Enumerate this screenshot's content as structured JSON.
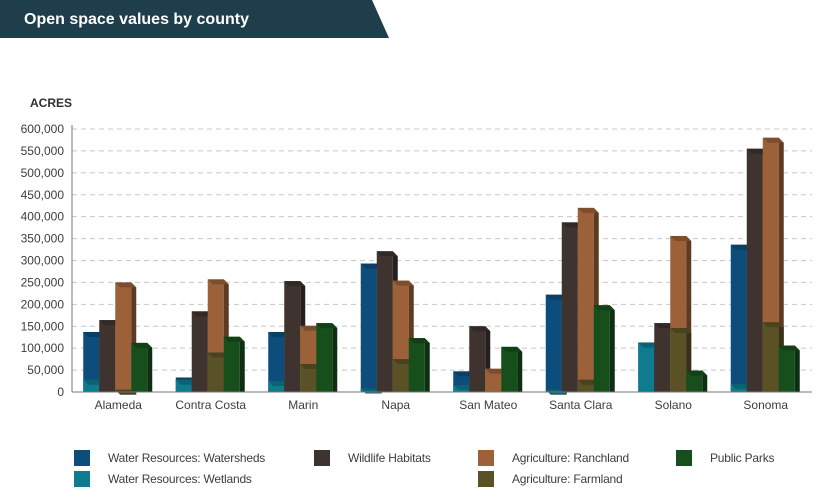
{
  "header": {
    "title": "Open space values by county"
  },
  "colors": {
    "banner": "#1e3e4c",
    "grid": "#c8c8c8",
    "axis": "#777777",
    "text": "#3d3d3d"
  },
  "chart_data": {
    "type": "bar",
    "title": "",
    "ylabel": "ACRES",
    "ylim": [
      0,
      600000
    ],
    "yticks": [
      "0",
      "50,000",
      "100,000",
      "150,000",
      "200,000",
      "250,000",
      "300,000",
      "350,000",
      "400,000",
      "450,000",
      "500,000",
      "550,000",
      "600,000"
    ],
    "categories": [
      "Alameda",
      "Contra Costa",
      "Marin",
      "Napa",
      "San Mateo",
      "Santa Clara",
      "Solano",
      "Sonoma"
    ],
    "layering": "Wetlands drawn as the lower portion of the Watersheds bar; Farmland drawn as the lower portion of the Ranchland bar",
    "series": [
      {
        "name": "Water Resources: Watersheds",
        "color": "#0c4d7c",
        "values": [
          137000,
          33000,
          137000,
          293000,
          47000,
          222000,
          113000,
          336000
        ]
      },
      {
        "name": "Water Resources: Wetlands",
        "color": "#0e7b8e",
        "values": [
          28000,
          28000,
          25000,
          8000,
          16000,
          5000,
          113000,
          18000
        ]
      },
      {
        "name": "Wildlife Habitats",
        "color": "#3f3330",
        "values": [
          164000,
          184000,
          253000,
          321000,
          150000,
          387000,
          157000,
          555000
        ]
      },
      {
        "name": "Agriculture: Ranchland",
        "color": "#9c6138",
        "values": [
          250000,
          257000,
          151000,
          254000,
          53000,
          420000,
          356000,
          580000
        ]
      },
      {
        "name": "Agriculture: Farmland",
        "color": "#5a5226",
        "values": [
          5000,
          90000,
          64000,
          75000,
          0,
          28000,
          146000,
          159000
        ]
      },
      {
        "name": "Public Parks",
        "color": "#174f1c",
        "values": [
          112000,
          126000,
          157000,
          123000,
          103000,
          198000,
          49000,
          106000
        ]
      }
    ]
  }
}
